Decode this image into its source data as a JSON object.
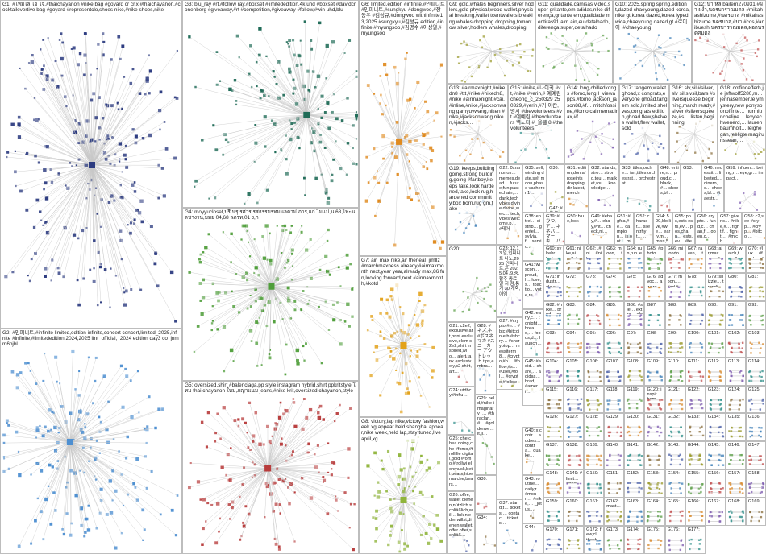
{
  "colors": {
    "G1": "#2c3b80",
    "G2": "#4d8fd1",
    "G3": "#1f6b57",
    "G4": "#4f9e3a",
    "G5": "#b83c3c",
    "G6": "#e08a1e",
    "G7": "#e3a21a",
    "G8": "#8fb43a",
    "edge": "#c8c8c8",
    "border": "#bdbdbd",
    "small": "#9ab0c8"
  },
  "groups": [
    {
      "id": "G1",
      "text": "G1: #ไหมไล,โจ โจ,#thaichayanon #nike;bag #goyard cr cr,x #thaichayanon,#cocktailevertive bag #goyard #representclo,shoes nike,#nike shoes,nike"
    },
    {
      "id": "G2",
      "text": "G2: #인피니트,#infinite limited,edition infinite,concert concert,limited_2025,infinite #infinite,#limitededition 2024,2025 ifnt_official,_2024 edition day3 co_jnmm6pjbl"
    },
    {
      "id": "G3",
      "text": "G3: blu_ray #rt,#follow ray,#boxset #limitededition,4k uhd #boxset #davidcronenberg #giveaway,#rt #competition,#giveaway #follow,#win uhd,blu"
    },
    {
      "id": "G4",
      "text": "G4: moyyucloset,ปรื่ นรุ,รศาร รสธรรมรทมนลตาม่ ภาร,แก่ ไมแม่,น 68,ไพะน ลชางาน,มมย 04,68 ลภรท,01 ง,ก"
    },
    {
      "id": "G5",
      "text": "G5: oversized,shirt #balenciaga,pp style,instagram hybrid,shirt ppkritstyle,ใหม thai,chayanon ใหม่,ภญาแนม jeans,#nike krit,oversized chayanon,style"
    },
    {
      "id": "G6",
      "text": "G6: limited,edition #infinite,#인피니트 #인피니트,#sungkyu #dongwoo,#장동우 #김성규,#dongwoo withinfinite13,2025 #sungkyu,#김성규 edition,#infinite #myungsoo,#김명수 #이성열,#myungsoo"
    },
    {
      "id": "G7",
      "text": "G7: air_max nike,air theneal_jimllz_ #marchmaxness already,#airmaxmonth next,year year,already max,86 fun,looking forward,next #airmaxmonth,#kotd"
    },
    {
      "id": "G8",
      "text": "G8: victory,lap nike,victory fashion,week xg,appear held,shanghai appear,nike week,held lap,stay tuned,live april,xg"
    },
    {
      "id": "G9",
      "text": "G9: gold,whales beginners,silver hodlers,gold physical,wood wallet,physical breaking,wallet tcentwallets,breaking whales,dropping dropping,tomorrow silver,hodlers whales,dropping"
    },
    {
      "id": "G10",
      "text": "G10: 2025,spring spring,edition lt,dazed chaeyoung,dazed korea,nike gt,korea dazed,korea lypedwica,chaeyoung dazed,gt #로이어 ,#chaeyoung"
    },
    {
      "id": "G11",
      "text": "G11: qualidade,camisas video,super gritante,em adidas,nike diferença,gritante em,qualidade mentiras91,alm ain,eu detalhado,diferença super,detalhado"
    },
    {
      "id": "G12",
      "text": "G12: นา,หล bailern270931,#ผา ผงำ,นครบาราณมดล #mikahashizume,#นครบาล #mikahashizume นครบาล,#นา #cos,#anibuesh นครบาราณมดล,ผอกนรดศมตล"
    },
    {
      "id": "G13",
      "text": "G13: #airmaxnight,#nikedn8 #ttt,#nike #nikedn8,#nike #airmaxnight,#cai,#inline,#nike,#jacksonwang gamyuywang,niken #nike,#jacksonwang niken,#jacks…"
    },
    {
      "id": "G14",
      "text": "G14: long,chilledkongs #fomo,long I_viewapps,#fomo jackson_jason88,#f… mitchfossine,#fomo callmemadirax,#f…"
    },
    {
      "id": "G15",
      "text": "G15: #nike,#나이키 #vt,#nike #yerin,# 예예린 cheong_c_250329 250329,#yerin,#가 이칸,병시 #thevolunteers,#vt #예예린,#thevolunteers 벽노티,#_을봄 8,#thevolunteers"
    },
    {
      "id": "G16",
      "text": "G16: slv,sil #silver,slv sil,slvsil,bars #silversqueeze,beginning,march ready,#silver #silversqueeze,#s… listen,beginning"
    },
    {
      "id": "G17",
      "text": "G17: tangem,wallet ghoad,x congrats,everyone ghoad,tangem sold,limited shelves,congrats edition,ghoad flew,shelves wallet,flew wallet,sold"
    },
    {
      "id": "G18",
      "text": "G18: coffindefferb,je jeffwolf5280,m… jennasember,le ymystery,new ponysoonoffinte… nurmluncheline… lexytechwenerd,… laurenbaumholt… leighegan,reeligte magirunssean,…"
    },
    {
      "id": "G19",
      "text": "G19: keeps,building going,strong building,going #fartboy,keeps take,look hardened,take,look rug,hardened community,box born,rug gm,take"
    },
    {
      "id": "G20",
      "text": "G20:"
    },
    {
      "id": "G21",
      "text": "G21: c2e2,exclusive art,print exclusive,elem c2e2,shirt inspired,wlo… alert,tank exclusively,c2 shirt,art…"
    },
    {
      "id": "G22",
      "text": "G22: 0xrarnonos… memes,dead… future,fun pastechain,… dank,tech vibes,divine divine,welc… tech,vibes welcome,p… ,#제어"
    },
    {
      "id": "G23",
      "text": "G23: 12,13 일,인피니트 나노,2025 인피니트,콘 2025,04 /9,중,합주 종료일 지 점,통기 30 개학,애엠"
    },
    {
      "id": "G24",
      "text": "G24: utdbcy,#influ…"
    },
    {
      "id": "G25",
      "text": "G25: che,chea doing,che #fomo,#trollifie digital,gold #fomo,#trollwi elonmusk,bett bears,hiberna che,bears…"
    },
    {
      "id": "G26",
      "text": "G26: offre,wallet dienen,nützlich schliäßlich,wil… link,nieder willst,dienen wallet,offer offer,schliäß…"
    },
    {
      "id": "G27",
      "text": "G27: #crypto,#n… #btc,#bitcoin eth,#shcry… #shcryptop… messiterm8… #crypto,#b… #follow,#s… #user,#foll… #crypto,#follow"
    },
    {
      "id": "G28",
      "text": "G28: #ネズ,ネ #ボスネ マカ #スニーカー アウトレット tips,embra…"
    },
    {
      "id": "G29",
      "text": "G29: held,#nike imaginary_… #thraclan,#… #goldenve… it,il…"
    },
    {
      "id": "G30",
      "text": "G30:"
    },
    {
      "id": "G31",
      "text": "G31: edition,don afroseints_ dropping,dir latest,merch"
    },
    {
      "id": "G32",
      "text": "G32: stands,stro… strong,tou… market,rou… knowledge…"
    },
    {
      "id": "G33",
      "text": "G33: titles,orche… isn,titles orchestrat… orchestrat…"
    },
    {
      "id": "G34",
      "text": "G34:"
    },
    {
      "id": "G35",
      "text": "G35: self,winding date,self moon,phase vacheron1…"
    },
    {
      "id": "G36",
      "text": "G36:"
    },
    {
      "id": "G37",
      "text": "G37: stand,t… tickets,… contac… tickets…"
    },
    {
      "id": "G38",
      "text": "G38: entrel… distrib… gentel… sylvia,f… servic…"
    },
    {
      "id": "G39",
      "text": "G39: #ひつ,ア… ネネバ… マーキ… パキノ… ,#クマ…"
    },
    {
      "id": "G40",
      "text": "G40: x,contr… addres… contra… quake…"
    },
    {
      "id": "G41",
      "text": "G41: wiscon… proud,l… love,s… toactio… vote,re…"
    },
    {
      "id": "G42",
      "text": "G42: early,c… tonight… bread,… foods,d… launch…"
    },
    {
      "id": "G43",
      "text": "G43: routine… daily,r… #moun… #nike,… _jotus…"
    },
    {
      "id": "G44",
      "text": "G44:"
    },
    {
      "id": "G45",
      "text": "G45: #adid… share,… adidas… brad,… #ameri…"
    },
    {
      "id": "G46",
      "text": "G46: necessit… liberted,… dinero,c… shoes,bl… #taestr…"
    },
    {
      "id": "G47",
      "text": "G47: #スク ネ宏… #nike 27,25cm 27_ボ…"
    },
    {
      "id": "G48",
      "text": "G48: entire,n… proud,c… black,#… shoes,bl…"
    },
    {
      "id": "G49",
      "text": "G49: #ebay,#… ebay,#nt… check,ni…"
    },
    {
      "id": "G50",
      "text": "G50: blue,lock"
    },
    {
      "id": "G51",
      "text": "G51: #gfca,#e… campion… is,ont… miss,500…"
    },
    {
      "id": "G52",
      "text": "G52: charact… silentrhyt… …"
    },
    {
      "id": "G53",
      "text": "G53:"
    },
    {
      "id": "G54",
      "text": "G54: 500,klo live,#we… early,m… miss,500…"
    },
    {
      "id": "G55",
      "text": "G55: pos,ests ests,ev… pos,chan… ests,ev… #feelth…"
    },
    {
      "id": "G56",
      "text": "G56: crypto… fund,c… chan,f… open,c…"
    },
    {
      "id": "G57",
      "text": "G57: giver,c… #nike,#… fight,f… fight,… #mich…"
    },
    {
      "id": "G58",
      "text": "G58: c2,see #cryp… #cryp… #bitcoi…"
    },
    {
      "id": "G59",
      "text": "G59: influen… being,r… eye,gr… impact…"
    },
    {
      "id": "G60",
      "text": "G60: sylrebr… kyrie,r… 17,over latest,…"
    },
    {
      "id": "G61",
      "text": "G61: nike,ai… dn8,#ni… ,#nike… ,#nike…"
    },
    {
      "id": "G62",
      "text": "G62: ,#ni… #nike…"
    },
    {
      "id": "G63",
      "text": "G63: moon,… trumpet… ready,… mining…"
    },
    {
      "id": "G64",
      "text": "G64: run,run leur,expl… leftdect… comme…"
    },
    {
      "id": "G65",
      "text": "G65: #photo… #artoni… #artist,… #artist,…"
    },
    {
      "id": "G66",
      "text": "G66: mirondo… #nike,#… #negative… trading,…"
    },
    {
      "id": "G67",
      "text": "G67: raven,… tomorr… sale,s… kit,goe…"
    },
    {
      "id": "G68",
      "text": "G68: air,max… max,95,… tour,sn… nike,ai… shoe,n…"
    },
    {
      "id": "G69",
      "text": "G69: watch,t… shelby… brown,… #rafa… #iway…"
    },
    {
      "id": "G70",
      "text": "G70: #lux… #fash… #style… mislab,shen"
    },
    {
      "id": "G71",
      "text": "G71: industr… ole,sig… seven,… bitcoin…"
    },
    {
      "id": "G72",
      "text": "G72:"
    },
    {
      "id": "G73",
      "text": "G73:"
    },
    {
      "id": "G74",
      "text": "G74:"
    },
    {
      "id": "G75",
      "text": "G75:"
    },
    {
      "id": "G76",
      "text": "G76: advoc… aware… michel… god,pl…"
    },
    {
      "id": "G77",
      "text": "G77: moon,… #ad,#… theso…"
    },
    {
      "id": "G78",
      "text": "G78:"
    },
    {
      "id": "G79",
      "text": "G79: snizzle… trendin… again,… #trickon…"
    },
    {
      "id": "G80",
      "text": "G80:"
    },
    {
      "id": "G81",
      "text": "G81:"
    },
    {
      "id": "G82",
      "text": "G82: #nike… brud… com…"
    },
    {
      "id": "G83",
      "text": "G83:"
    },
    {
      "id": "G84",
      "text": "G84:"
    },
    {
      "id": "G85",
      "text": "G85:"
    },
    {
      "id": "G86",
      "text": "G86: #sle… extra… elodi…"
    },
    {
      "id": "G87",
      "text": "G87:"
    },
    {
      "id": "G88",
      "text": "G88:"
    },
    {
      "id": "G89",
      "text": "G89:"
    },
    {
      "id": "G90",
      "text": "G90:"
    },
    {
      "id": "G91",
      "text": "G91:"
    },
    {
      "id": "G92",
      "text": "G92:"
    },
    {
      "id": "G93",
      "text": "G93:"
    },
    {
      "id": "G94",
      "text": "G94:"
    },
    {
      "id": "G95",
      "text": "G95:"
    },
    {
      "id": "G96",
      "text": "G96:"
    },
    {
      "id": "G97",
      "text": "G97:"
    },
    {
      "id": "G98",
      "text": "G98:"
    },
    {
      "id": "G99",
      "text": "G99:"
    },
    {
      "id": "G100",
      "text": "G100:"
    },
    {
      "id": "G101",
      "text": "G101:"
    },
    {
      "id": "G102",
      "text": "G102:"
    },
    {
      "id": "G103",
      "text": "G103:"
    },
    {
      "id": "G104",
      "text": "G104:"
    },
    {
      "id": "G105",
      "text": "G105:"
    },
    {
      "id": "G106",
      "text": "G106:"
    },
    {
      "id": "G107",
      "text": "G107:"
    },
    {
      "id": "G108",
      "text": "G108:"
    },
    {
      "id": "G109",
      "text": "G109:"
    },
    {
      "id": "G110",
      "text": "G110:"
    },
    {
      "id": "G111",
      "text": "G111:"
    },
    {
      "id": "G112",
      "text": "G112:"
    },
    {
      "id": "G113",
      "text": "G113:"
    },
    {
      "id": "G114",
      "text": "G114:"
    },
    {
      "id": "G115",
      "text": "G115:"
    },
    {
      "id": "G116",
      "text": "G116:"
    },
    {
      "id": "G117",
      "text": "G117:"
    },
    {
      "id": "G118",
      "text": "G118:"
    },
    {
      "id": "G119",
      "text": "G119:"
    },
    {
      "id": "G120",
      "text": "G120: inspir… hom… histo…"
    },
    {
      "id": "G121",
      "text": "G121:"
    },
    {
      "id": "G122",
      "text": "G122:"
    },
    {
      "id": "G123",
      "text": "G123:"
    },
    {
      "id": "G124",
      "text": "G124:"
    },
    {
      "id": "G125",
      "text": "G125:"
    },
    {
      "id": "G126",
      "text": "G126:"
    },
    {
      "id": "G127",
      "text": "G127:"
    },
    {
      "id": "G128",
      "text": "G128:"
    },
    {
      "id": "G129",
      "text": "G129:"
    },
    {
      "id": "G130",
      "text": "G130:"
    },
    {
      "id": "G131",
      "text": "G131:"
    },
    {
      "id": "G132",
      "text": "G132:"
    },
    {
      "id": "G133",
      "text": "G133:"
    },
    {
      "id": "G134",
      "text": "G134:"
    },
    {
      "id": "G135",
      "text": "G135:"
    },
    {
      "id": "G136",
      "text": "G136:"
    },
    {
      "id": "G137",
      "text": "G137:"
    },
    {
      "id": "G138",
      "text": "G138:"
    },
    {
      "id": "G139",
      "text": "G139:"
    },
    {
      "id": "G140",
      "text": "G140:"
    },
    {
      "id": "G141",
      "text": "G141:"
    },
    {
      "id": "G142",
      "text": "G142:"
    },
    {
      "id": "G143",
      "text": "G143:"
    },
    {
      "id": "G144",
      "text": "G144:"
    },
    {
      "id": "G145",
      "text": "G145:"
    },
    {
      "id": "G146",
      "text": "G146:"
    },
    {
      "id": "G147",
      "text": "G147:"
    },
    {
      "id": "G148",
      "text": "G148:"
    },
    {
      "id": "G149",
      "text": "G149: #limit… #pecl… popu…"
    },
    {
      "id": "G150",
      "text": "G150:"
    },
    {
      "id": "G151",
      "text": "G151:"
    },
    {
      "id": "G152",
      "text": "G152:"
    },
    {
      "id": "G153",
      "text": "G153:"
    },
    {
      "id": "G154",
      "text": "G154:"
    },
    {
      "id": "G155",
      "text": "G155:"
    },
    {
      "id": "G156",
      "text": "G156:"
    },
    {
      "id": "G157",
      "text": "G157:"
    },
    {
      "id": "G158",
      "text": "G158:"
    },
    {
      "id": "G159",
      "text": "G159:"
    },
    {
      "id": "G160",
      "text": "G160:"
    },
    {
      "id": "G161",
      "text": "G161:"
    },
    {
      "id": "G162",
      "text": "G162: mast… tong… gess…"
    },
    {
      "id": "G163",
      "text": "G163:"
    },
    {
      "id": "G164",
      "text": "G164:"
    },
    {
      "id": "G165",
      "text": "G165:"
    },
    {
      "id": "G166",
      "text": "G166:"
    },
    {
      "id": "G167",
      "text": "G167:"
    },
    {
      "id": "G168",
      "text": "G168:"
    },
    {
      "id": "G169",
      "text": "G169:"
    },
    {
      "id": "G170",
      "text": "G170:"
    },
    {
      "id": "G171",
      "text": "G171:"
    },
    {
      "id": "G172",
      "text": "G172: few,cl… thesh…"
    },
    {
      "id": "G173",
      "text": "G173:"
    },
    {
      "id": "G174",
      "text": "G174:"
    },
    {
      "id": "G175",
      "text": "G175:"
    },
    {
      "id": "G176",
      "text": "G176:"
    },
    {
      "id": "G177",
      "text": "G177:"
    }
  ]
}
